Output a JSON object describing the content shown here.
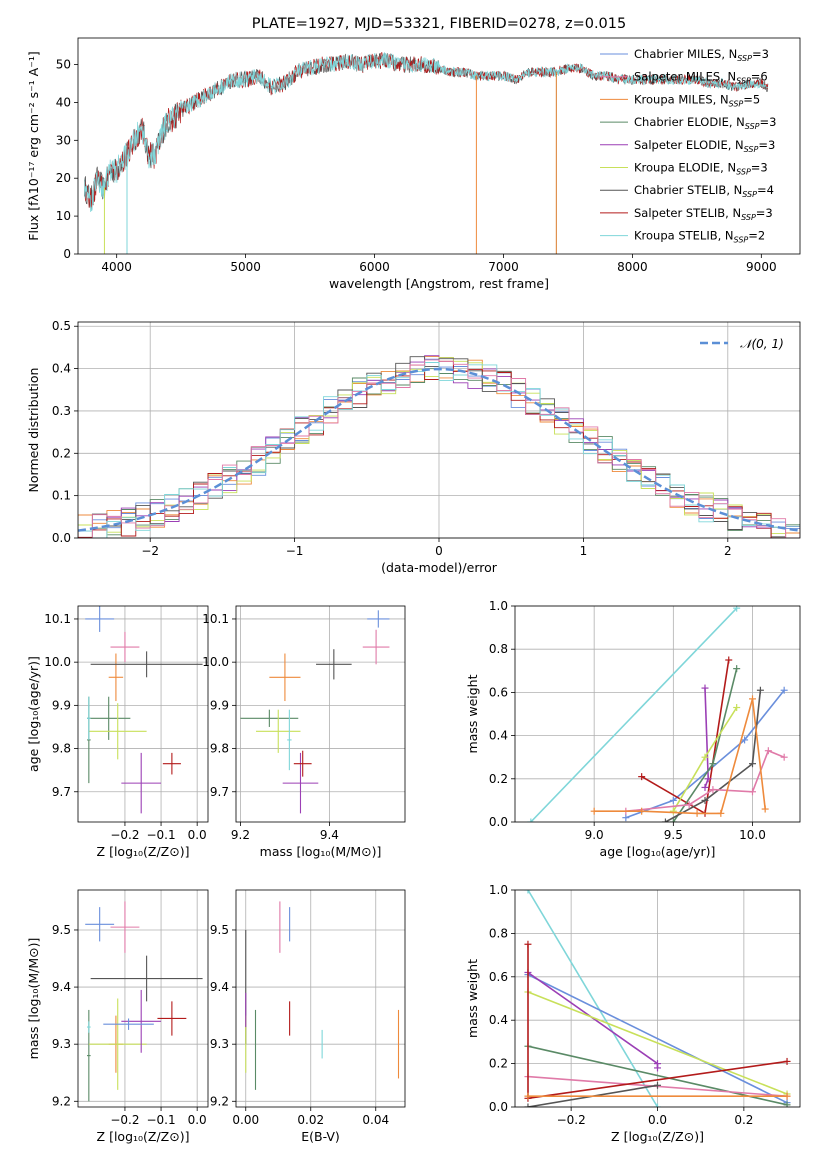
{
  "colors": [
    "#6a8fdc",
    "#ee8a3c",
    "#d97a2a",
    "#5a8a66",
    "#9b3fb5",
    "#c8e05a",
    "#555555",
    "#b31b1b",
    "#7fd6d9",
    "#e07aa8"
  ],
  "chart_data": [
    {
      "type": "line",
      "title": "PLATE=1927, MJD=53321, FIBERID=0278, z=0.015",
      "xlabel": "wavelength [Angstrom, rest frame]",
      "ylabel": "Flux [fλ10⁻¹⁷ erg cm⁻² s⁻¹ A⁻¹]",
      "xlim": [
        3700,
        9300
      ],
      "ylim": [
        0,
        57
      ],
      "xticks": [
        4000,
        5000,
        6000,
        7000,
        8000,
        9000
      ],
      "yticks": [
        0,
        10,
        20,
        30,
        40,
        50
      ],
      "spectrum": {
        "x": [
          3750,
          3800,
          3850,
          3900,
          3950,
          4000,
          4050,
          4100,
          4150,
          4200,
          4250,
          4300,
          4350,
          4400,
          4450,
          4500,
          4600,
          4700,
          4800,
          4900,
          5000,
          5100,
          5200,
          5300,
          5400,
          5500,
          5600,
          5700,
          5800,
          5900,
          6000,
          6100,
          6200,
          6300,
          6400,
          6500,
          6600,
          6700,
          6800,
          6900,
          7000,
          7100,
          7200,
          7300,
          7400,
          7500,
          7600,
          7700,
          7800,
          7900,
          8000,
          8100,
          8200,
          8300,
          8400,
          8500,
          8600,
          8700,
          8800,
          8900,
          9000,
          9050
        ],
        "y": [
          18,
          14,
          20,
          17,
          22,
          22,
          25,
          27,
          31,
          33,
          26,
          26,
          32,
          35,
          36,
          38,
          40,
          42,
          44,
          46,
          46,
          47,
          44,
          45,
          48,
          49,
          50,
          50,
          51,
          50,
          51,
          51,
          50,
          50,
          50,
          49,
          48,
          48,
          47,
          47,
          47,
          46,
          48,
          48,
          48,
          49,
          49,
          47,
          47,
          46,
          46,
          46,
          46,
          46,
          46,
          46,
          45,
          45,
          44,
          45,
          45,
          44
        ]
      },
      "legend": [
        "Chabrier MILES, N_SSP=3",
        "Salpeter MILES, N_SSP=6",
        "Kroupa MILES, N_SSP=5",
        "Chabrier ELODIE, N_SSP=3",
        "Salpeter ELODIE, N_SSP=3",
        "Kroupa ELODIE, N_SSP=3",
        "Chabrier STELIB, N_SSP=4",
        "Salpeter STELIB, N_SSP=3",
        "Kroupa STELIB, N_SSP=2"
      ],
      "legend_loc": "upper-right",
      "grid": false
    },
    {
      "type": "histogram",
      "xlabel": "(data-model)/error",
      "ylabel": "Normed distribution",
      "xlim": [
        -2.5,
        2.5
      ],
      "ylim": [
        0,
        0.51
      ],
      "xticks": [
        -2,
        -1,
        0,
        1,
        2
      ],
      "yticks": [
        0.0,
        0.1,
        0.2,
        0.3,
        0.4,
        0.5
      ],
      "bin_width": 0.1,
      "reference": {
        "name": "𝒩(0, 1)",
        "mean": 0,
        "sigma": 1
      },
      "legend_loc": "upper-right",
      "grid": true
    },
    {
      "type": "errorbar",
      "xlabel": "Z [log₁₀(Z/Z⊙)]",
      "ylabel": "age  [log₁₀(age/yr)]",
      "xlim": [
        -0.33,
        0.03
      ],
      "ylim": [
        9.63,
        10.13
      ],
      "xticks": [
        -0.2,
        -0.1,
        0.0
      ],
      "yticks": [
        9.7,
        9.8,
        9.9,
        10.0,
        10.1
      ],
      "points": [
        {
          "x": -0.27,
          "xerr": 0.04,
          "y": 10.1,
          "yerr": 0.03,
          "c": 0
        },
        {
          "x": -0.2,
          "xerr": 0.04,
          "y": 10.035,
          "yerr": 0.035,
          "c": 9
        },
        {
          "x": -0.225,
          "xerr": 0.02,
          "y": 9.965,
          "yerr": 0.055,
          "c": 1
        },
        {
          "x": -0.14,
          "xerr": 0.155,
          "y": 9.995,
          "yerr": 0.03,
          "c": 6
        },
        {
          "x": -0.245,
          "xerr": 0.06,
          "y": 9.87,
          "yerr": 0.05,
          "c": 3
        },
        {
          "x": -0.22,
          "xerr": 0.08,
          "y": 9.84,
          "yerr": 0.065,
          "c": 5
        },
        {
          "x": -0.3,
          "xerr": 0.005,
          "y": 9.82,
          "yerr": 0.1,
          "c": 3
        },
        {
          "x": -0.3,
          "xerr": 0.005,
          "y": 9.87,
          "yerr": 0.05,
          "c": 8
        },
        {
          "x": -0.155,
          "xerr": 0.055,
          "y": 9.72,
          "yerr": 0.07,
          "c": 4
        },
        {
          "x": -0.07,
          "xerr": 0.025,
          "y": 9.765,
          "yerr": 0.025,
          "c": 7
        }
      ]
    },
    {
      "type": "errorbar",
      "xlabel": "mass [log₁₀(M/M⊙)]",
      "ylabel": "",
      "xlim": [
        9.19,
        9.57
      ],
      "ylim": [
        9.63,
        10.13
      ],
      "xticks": [
        9.2,
        9.4
      ],
      "yticks": [
        9.7,
        9.8,
        9.9,
        10.0,
        10.1
      ],
      "points": [
        {
          "x": 9.51,
          "xerr": 0.025,
          "y": 10.1,
          "yerr": 0.02,
          "c": 0
        },
        {
          "x": 9.505,
          "xerr": 0.03,
          "y": 10.035,
          "yerr": 0.04,
          "c": 9
        },
        {
          "x": 9.3,
          "xerr": 0.035,
          "y": 9.965,
          "yerr": 0.055,
          "c": 1
        },
        {
          "x": 9.41,
          "xerr": 0.04,
          "y": 9.995,
          "yerr": 0.035,
          "c": 6
        },
        {
          "x": 9.265,
          "xerr": 0.065,
          "y": 9.87,
          "yerr": 0.02,
          "c": 3
        },
        {
          "x": 9.285,
          "xerr": 0.05,
          "y": 9.84,
          "yerr": 0.05,
          "c": 5
        },
        {
          "x": 9.31,
          "xerr": 0.005,
          "y": 9.82,
          "yerr": 0.07,
          "c": 8
        },
        {
          "x": 9.335,
          "xerr": 0.04,
          "y": 9.72,
          "yerr": 0.07,
          "c": 4
        },
        {
          "x": 9.34,
          "xerr": 0.02,
          "y": 9.765,
          "yerr": 0.03,
          "c": 7
        }
      ]
    },
    {
      "type": "line",
      "xlabel": "age  [log₁₀(age/yr)]",
      "ylabel": "mass weight",
      "xlim": [
        8.5,
        10.3
      ],
      "ylim": [
        0,
        1
      ],
      "xticks": [
        9.0,
        9.5,
        10.0
      ],
      "yticks": [
        0.0,
        0.2,
        0.4,
        0.6,
        0.8,
        1.0
      ],
      "series": [
        {
          "x": [
            8.6,
            9.9
          ],
          "y": [
            0.0,
            0.99
          ],
          "c": 8
        },
        {
          "x": [
            9.2,
            9.5,
            9.95,
            10.2
          ],
          "y": [
            0.02,
            0.1,
            0.38,
            0.61
          ],
          "c": 0
        },
        {
          "x": [
            9.3,
            9.7,
            9.85
          ],
          "y": [
            0.21,
            0.04,
            0.75
          ],
          "c": 7
        },
        {
          "x": [
            9.7,
            9.72,
            9.7
          ],
          "y": [
            0.62,
            0.2,
            0.16
          ],
          "c": 4
        },
        {
          "x": [
            9.5,
            9.75,
            9.9
          ],
          "y": [
            0.0,
            0.27,
            0.71
          ],
          "c": 3
        },
        {
          "x": [
            9.5,
            9.7,
            9.9
          ],
          "y": [
            0.05,
            0.3,
            0.53
          ],
          "c": 5
        },
        {
          "x": [
            9.45,
            9.7,
            10.0,
            10.05
          ],
          "y": [
            0.0,
            0.1,
            0.27,
            0.61
          ],
          "c": 6
        },
        {
          "x": [
            9.2,
            9.6,
            9.75,
            10.0,
            10.1,
            10.2
          ],
          "y": [
            0.05,
            0.08,
            0.15,
            0.14,
            0.33,
            0.3
          ],
          "c": 9
        },
        {
          "x": [
            9.0,
            9.3,
            9.65,
            9.8,
            10.0,
            10.08
          ],
          "y": [
            0.05,
            0.05,
            0.04,
            0.04,
            0.57,
            0.06
          ],
          "c": 1
        }
      ],
      "grid": true
    },
    {
      "type": "errorbar",
      "xlabel": "Z [log₁₀(Z/Z⊙)]",
      "ylabel": "mass [log₁₀(M/M⊙)]",
      "xlim": [
        -0.33,
        0.03
      ],
      "ylim": [
        9.19,
        9.57
      ],
      "xticks": [
        -0.2,
        -0.1,
        0.0
      ],
      "yticks": [
        9.2,
        9.3,
        9.4,
        9.5
      ],
      "points": [
        {
          "x": -0.27,
          "xerr": 0.04,
          "y": 9.51,
          "yerr": 0.03,
          "c": 0
        },
        {
          "x": -0.2,
          "xerr": 0.04,
          "y": 9.505,
          "yerr": 0.045,
          "c": 9
        },
        {
          "x": -0.14,
          "xerr": 0.155,
          "y": 9.415,
          "yerr": 0.04,
          "c": 6
        },
        {
          "x": -0.3,
          "xerr": 0.005,
          "y": 9.28,
          "yerr": 0.08,
          "c": 3
        },
        {
          "x": -0.225,
          "xerr": 0.02,
          "y": 9.3,
          "yerr": 0.05,
          "c": 1
        },
        {
          "x": -0.22,
          "xerr": 0.08,
          "y": 9.3,
          "yerr": 0.08,
          "c": 5
        },
        {
          "x": -0.3,
          "xerr": 0.005,
          "y": 9.33,
          "yerr": 0.01,
          "c": 8
        },
        {
          "x": -0.155,
          "xerr": 0.055,
          "y": 9.34,
          "yerr": 0.055,
          "c": 4
        },
        {
          "x": -0.07,
          "xerr": 0.04,
          "y": 9.345,
          "yerr": 0.03,
          "c": 7
        },
        {
          "x": -0.19,
          "xerr": 0.07,
          "y": 9.335,
          "yerr": 0.01,
          "c": 0
        }
      ]
    },
    {
      "type": "errorbar",
      "xlabel": "E(B-V)",
      "ylabel": "",
      "xlim": [
        -0.003,
        0.049
      ],
      "ylim": [
        9.19,
        9.57
      ],
      "xticks": [
        0.0,
        0.02,
        0.04
      ],
      "yticks": [
        9.2,
        9.3,
        9.4,
        9.5
      ],
      "points": [
        {
          "x": 0.0,
          "xerr": 0,
          "y": 9.4,
          "yerr": 0.1,
          "c": 6
        },
        {
          "x": 0.0,
          "xerr": 0,
          "y": 9.3,
          "yerr": 0.05,
          "c": 5
        },
        {
          "x": 0.0,
          "xerr": 0,
          "y": 9.36,
          "yerr": 0.03,
          "c": 4
        },
        {
          "x": 0.003,
          "xerr": 0,
          "y": 9.29,
          "yerr": 0.07,
          "c": 3
        },
        {
          "x": 0.0105,
          "xerr": 0,
          "y": 9.505,
          "yerr": 0.045,
          "c": 9
        },
        {
          "x": 0.0135,
          "xerr": 0,
          "y": 9.51,
          "yerr": 0.03,
          "c": 0
        },
        {
          "x": 0.0135,
          "xerr": 0,
          "y": 9.345,
          "yerr": 0.03,
          "c": 7
        },
        {
          "x": 0.0235,
          "xerr": 0,
          "y": 9.3,
          "yerr": 0.025,
          "c": 8
        },
        {
          "x": 0.047,
          "xerr": 0,
          "y": 9.3,
          "yerr": 0.06,
          "c": 1
        }
      ]
    },
    {
      "type": "line",
      "xlabel": "Z [log₁₀(Z/Z⊙)]",
      "ylabel": "mass weight",
      "xlim": [
        -0.33,
        0.33
      ],
      "ylim": [
        0,
        1
      ],
      "xticks": [
        -0.2,
        0.0,
        0.2
      ],
      "yticks": [
        0.0,
        0.2,
        0.4,
        0.6,
        0.8,
        1.0
      ],
      "series": [
        {
          "x": [
            -0.3,
            0.0
          ],
          "y": [
            1.0,
            0.0
          ],
          "c": 8
        },
        {
          "x": [
            -0.3,
            0.3
          ],
          "y": [
            0.61,
            0.02
          ],
          "c": 0
        },
        {
          "x": [
            -0.3,
            0.0,
            0.0
          ],
          "y": [
            0.62,
            0.2,
            0.18
          ],
          "c": 4
        },
        {
          "x": [
            -0.3,
            0.3
          ],
          "y": [
            0.53,
            0.06
          ],
          "c": 5
        },
        {
          "x": [
            -0.3,
            0.3
          ],
          "y": [
            0.28,
            0.01
          ],
          "c": 3
        },
        {
          "x": [
            -0.3,
            0.3
          ],
          "y": [
            0.14,
            0.05
          ],
          "c": 9
        },
        {
          "x": [
            -0.3,
            0.0
          ],
          "y": [
            0.0,
            0.1
          ],
          "c": 6
        },
        {
          "x": [
            -0.3,
            -0.3,
            0.3
          ],
          "y": [
            0.75,
            0.04,
            0.21
          ],
          "c": 7
        },
        {
          "x": [
            -0.3,
            0.3
          ],
          "y": [
            0.05,
            0.05
          ],
          "c": 1
        }
      ],
      "grid": true
    }
  ]
}
